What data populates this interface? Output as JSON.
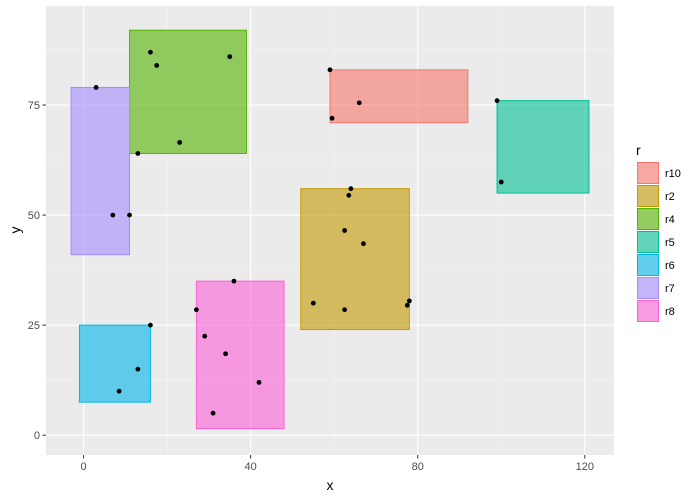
{
  "chart_data": {
    "type": "scatter",
    "title": "",
    "xlabel": "x",
    "ylabel": "y",
    "xlim": [
      -9,
      127
    ],
    "ylim": [
      -4.5,
      97.5
    ],
    "x_ticks": [
      0,
      40,
      80,
      120
    ],
    "y_ticks": [
      0,
      25,
      50,
      75
    ],
    "grid": true,
    "legend": {
      "title": "r",
      "position": "right",
      "entries": [
        {
          "name": "r10",
          "color": "#F8766D"
        },
        {
          "name": "r2",
          "color": "#C49A00"
        },
        {
          "name": "r4",
          "color": "#53B400"
        },
        {
          "name": "r5",
          "color": "#00C094"
        },
        {
          "name": "r6",
          "color": "#00B6EB"
        },
        {
          "name": "r7",
          "color": "#A58AFF"
        },
        {
          "name": "r8",
          "color": "#FB61D7"
        }
      ]
    },
    "rectangles": [
      {
        "r": "r10",
        "xmin": 59,
        "xmax": 92,
        "ymin": 71,
        "ymax": 83
      },
      {
        "r": "r2",
        "xmin": 52,
        "xmax": 78,
        "ymin": 24,
        "ymax": 56
      },
      {
        "r": "r4",
        "xmin": 11,
        "xmax": 39,
        "ymin": 64,
        "ymax": 92
      },
      {
        "r": "r5",
        "xmin": 99,
        "xmax": 121,
        "ymin": 55,
        "ymax": 76
      },
      {
        "r": "r6",
        "xmin": -1,
        "xmax": 16,
        "ymin": 7.5,
        "ymax": 25
      },
      {
        "r": "r7",
        "xmin": -3,
        "xmax": 11,
        "ymin": 41,
        "ymax": 79
      },
      {
        "r": "r8",
        "xmin": 27,
        "xmax": 48,
        "ymin": 1.5,
        "ymax": 35
      }
    ],
    "points": [
      {
        "x": 59,
        "y": 83
      },
      {
        "x": 59.5,
        "y": 72
      },
      {
        "x": 66,
        "y": 75.5
      },
      {
        "x": 64,
        "y": 56
      },
      {
        "x": 63.5,
        "y": 54.5
      },
      {
        "x": 62.5,
        "y": 46.5
      },
      {
        "x": 67,
        "y": 43.5
      },
      {
        "x": 55,
        "y": 30
      },
      {
        "x": 62.5,
        "y": 28.5
      },
      {
        "x": 77.5,
        "y": 29.5
      },
      {
        "x": 78,
        "y": 30.5
      },
      {
        "x": 16,
        "y": 87
      },
      {
        "x": 17.5,
        "y": 84
      },
      {
        "x": 35,
        "y": 86
      },
      {
        "x": 23,
        "y": 66.5
      },
      {
        "x": 13,
        "y": 64
      },
      {
        "x": 99,
        "y": 76
      },
      {
        "x": 100,
        "y": 57.5
      },
      {
        "x": 16,
        "y": 25
      },
      {
        "x": 13,
        "y": 15
      },
      {
        "x": 8.5,
        "y": 10
      },
      {
        "x": 3,
        "y": 79
      },
      {
        "x": 7,
        "y": 50
      },
      {
        "x": 11,
        "y": 50
      },
      {
        "x": 36,
        "y": 35
      },
      {
        "x": 27,
        "y": 28.5
      },
      {
        "x": 29,
        "y": 22.5
      },
      {
        "x": 34,
        "y": 18.5
      },
      {
        "x": 42,
        "y": 12
      },
      {
        "x": 31,
        "y": 5
      }
    ]
  }
}
